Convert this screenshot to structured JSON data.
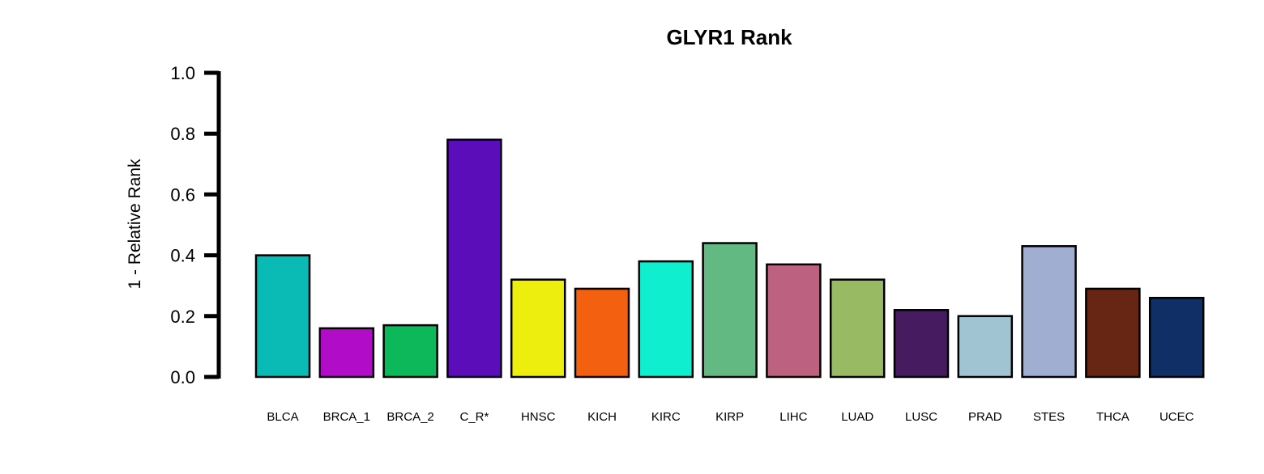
{
  "chart_data": {
    "type": "bar",
    "title": "GLYR1 Rank",
    "xlabel": "",
    "ylabel": "1 - Relative Rank",
    "ylim": [
      0,
      1.0
    ],
    "yticks": [
      "0.0",
      "0.2",
      "0.4",
      "0.6",
      "0.8",
      "1.0"
    ],
    "categories": [
      "BLCA",
      "BRCA_1",
      "BRCA_2",
      "C_R*",
      "HNSC",
      "KICH",
      "KIRC",
      "KIRP",
      "LIHC",
      "LUAD",
      "LUSC",
      "PRAD",
      "STES",
      "THCA",
      "UCEC"
    ],
    "values": [
      0.4,
      0.16,
      0.17,
      0.78,
      0.32,
      0.29,
      0.38,
      0.44,
      0.37,
      0.32,
      0.22,
      0.2,
      0.43,
      0.29,
      0.26
    ],
    "colors": [
      "#0ABAB5",
      "#B10DC9",
      "#0CB85A",
      "#5C0DBA",
      "#EEEE0E",
      "#F26010",
      "#10EED0",
      "#62B981",
      "#BC6180",
      "#97BA62",
      "#461B5F",
      "#A1C4D3",
      "#A0AED2",
      "#672613",
      "#0F2F66"
    ],
    "grid": false,
    "legend": "none"
  }
}
